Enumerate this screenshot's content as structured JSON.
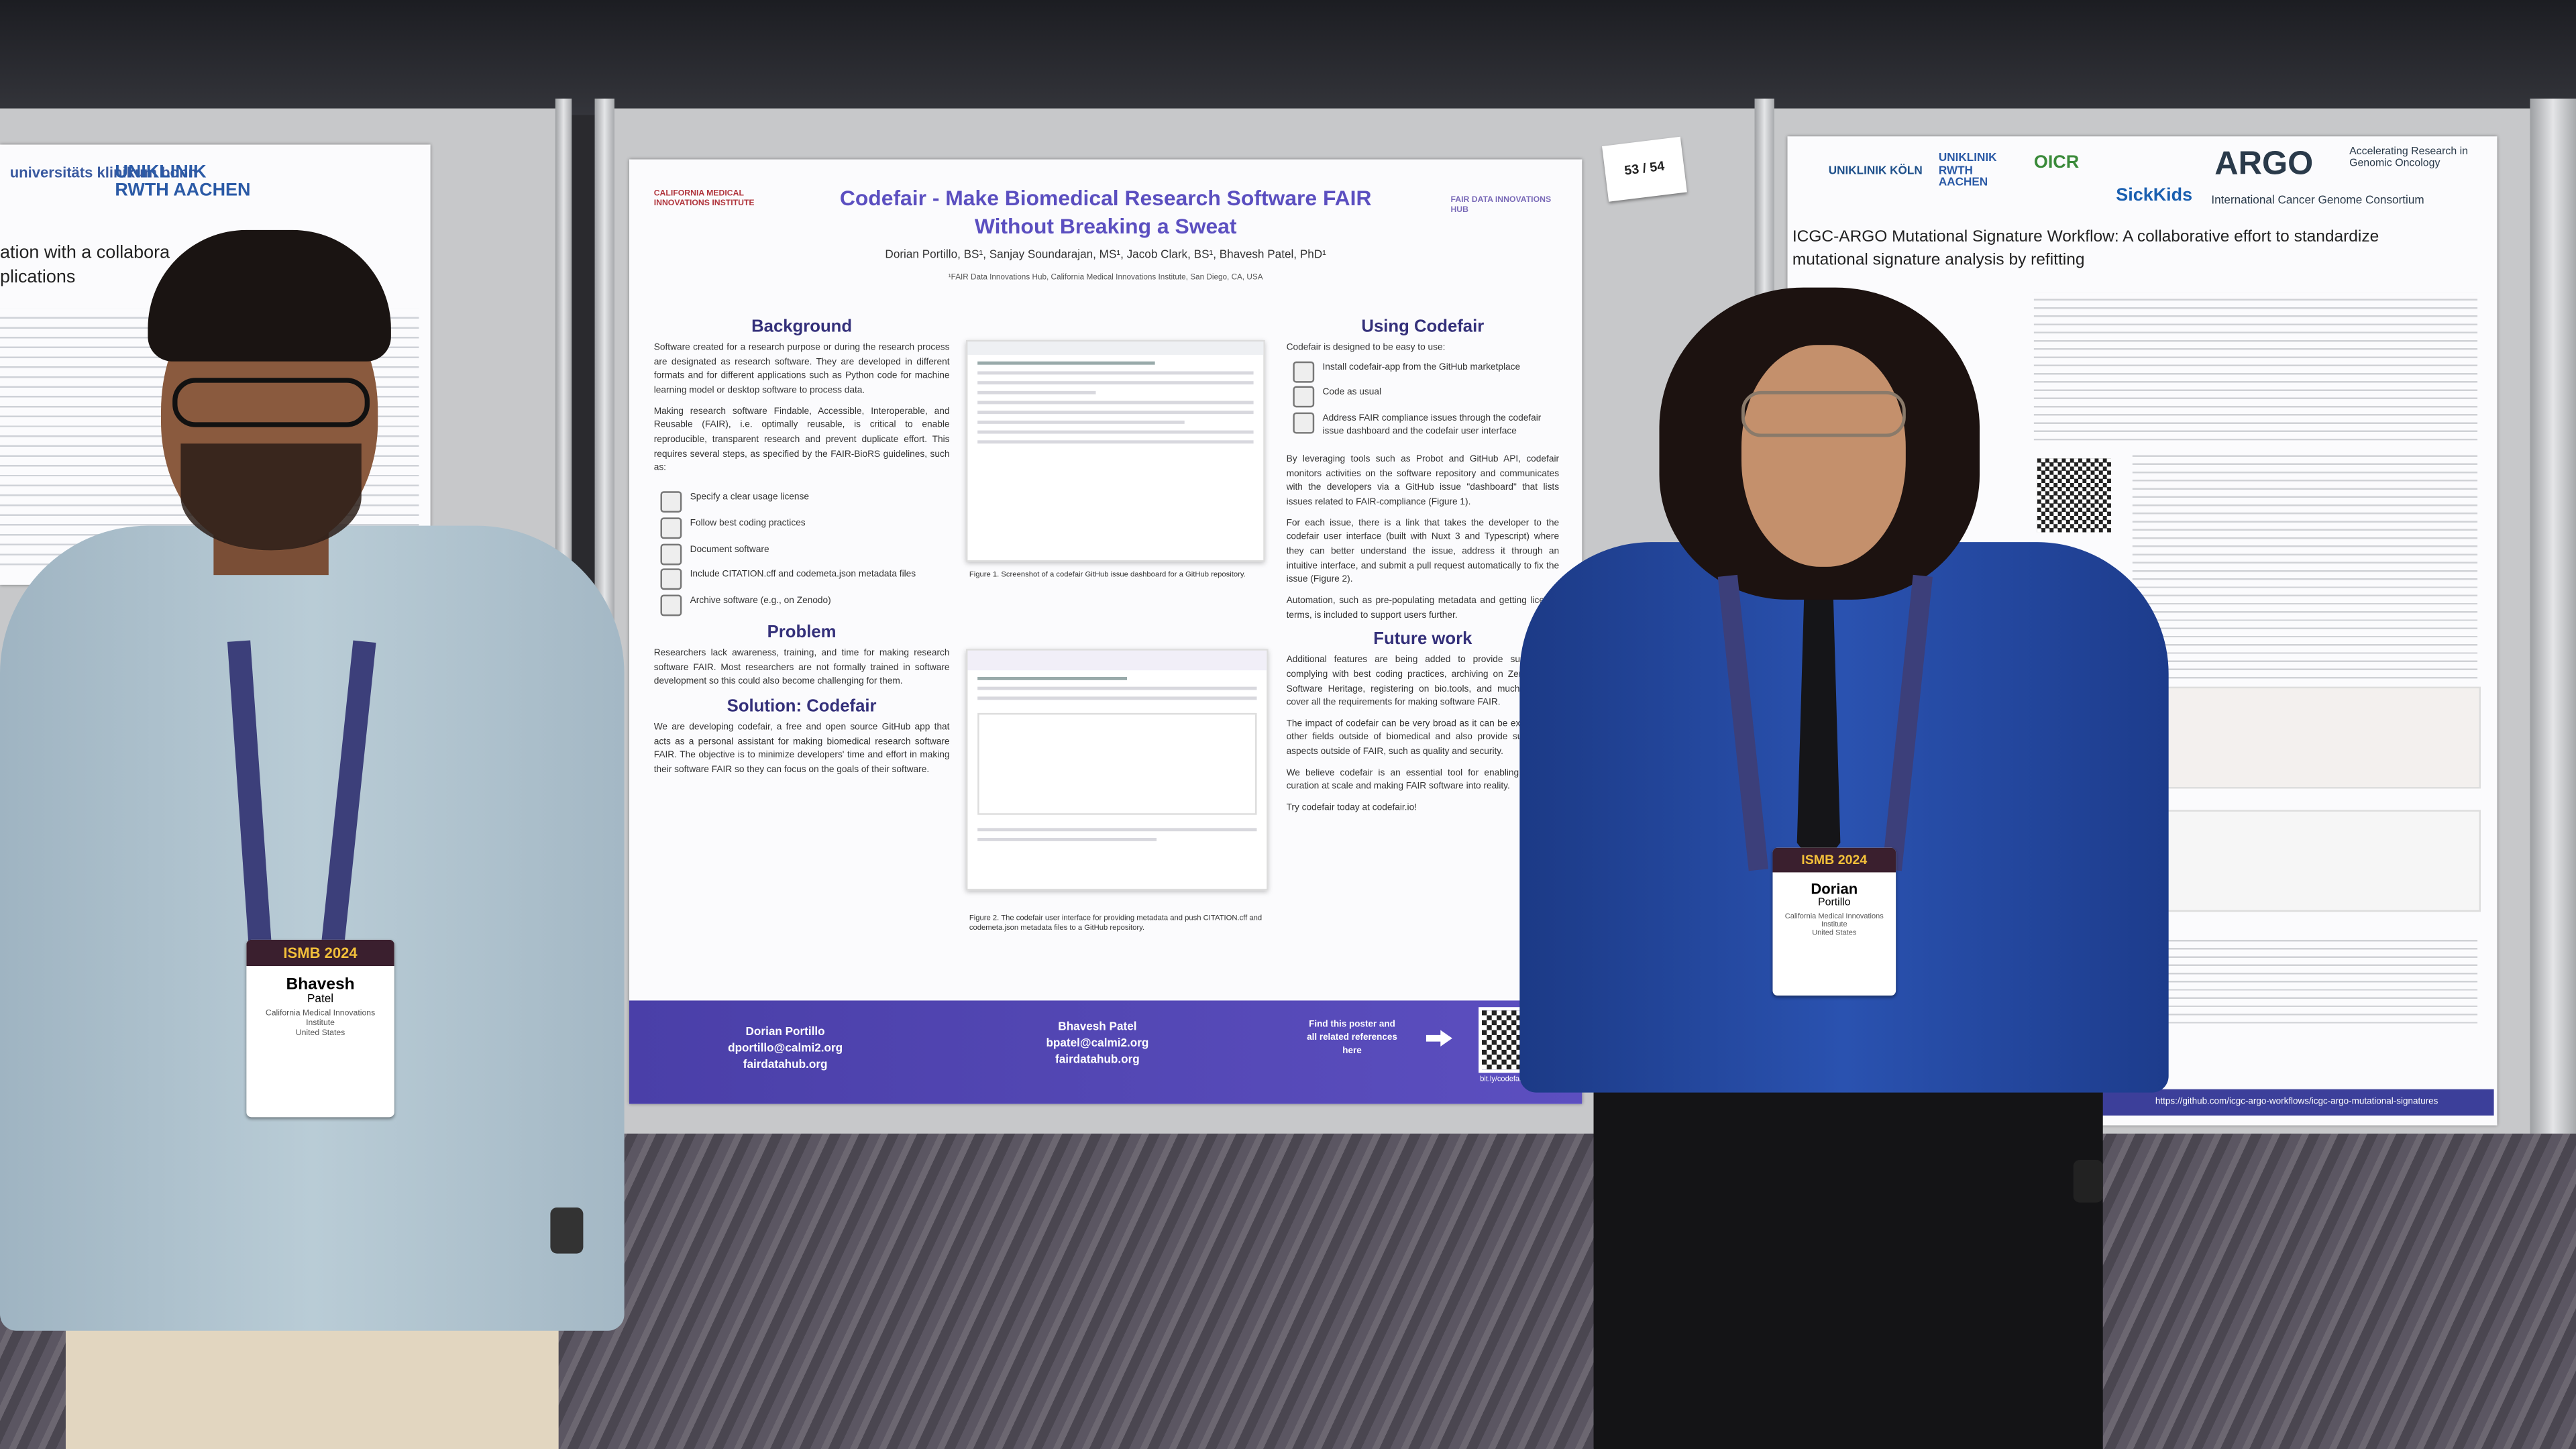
{
  "poster_number": "53 / 54",
  "left_poster": {
    "logo_bonn": "universitäts klinikum bonn",
    "logo_aachen": "UNIKLINIK RWTH AACHEN",
    "title_line_1": "ation with a collabora",
    "title_line_2": "plications"
  },
  "poster": {
    "logo_left": "CALIFORNIA MEDICAL INNOVATIONS INSTITUTE",
    "logo_right": "FAIR DATA INNOVATIONS HUB",
    "title": "Codefair - Make Biomedical Research Software FAIR Without Breaking a Sweat",
    "authors": "Dorian Portillo, BS¹, Sanjay Soundarajan, MS¹, Jacob Clark, BS¹, Bhavesh Patel, PhD¹",
    "affiliation": "¹FAIR Data Innovations Hub, California Medical Innovations Institute, San Diego, CA, USA",
    "background": {
      "heading": "Background",
      "paragraphs": [
        "Software created for a research purpose or during the research process are designated as research software. They are developed in different formats and for different applications such as Python code for machine learning model or desktop software to process data.",
        "Making research software Findable, Accessible, Interoperable, and Reusable (FAIR), i.e. optimally reusable, is critical to enable reproducible, transparent research and prevent duplicate effort. This requires several steps, as specified by the FAIR-BioRS guidelines, such as:"
      ],
      "steps": [
        "Specify a clear usage license",
        "Follow best coding practices",
        "Document software",
        "Include CITATION.cff and codemeta.json metadata files",
        "Archive software (e.g., on Zenodo)"
      ]
    },
    "problem": {
      "heading": "Problem",
      "text": "Researchers lack awareness, training, and time for making research software FAIR. Most researchers are not formally trained in software development so this could also become challenging for them."
    },
    "solution": {
      "heading": "Solution: Codefair",
      "text": "We are developing codefair, a free and open source GitHub app that acts as a personal assistant for making biomedical research software FAIR. The objective is to minimize developers' time and effort in making their software FAIR so they can focus on the goals of their software."
    },
    "figures": [
      "Figure 1. Screenshot of a codefair GitHub issue dashboard for a GitHub repository.",
      "Figure 2. The codefair user interface for providing metadata and push CITATION.cff and codemeta.json metadata files to a GitHub repository."
    ],
    "using": {
      "heading": "Using Codefair",
      "intro": "Codefair is designed to be easy to use:",
      "steps": [
        "Install codefair-app from the GitHub marketplace",
        "Code as usual",
        "Address FAIR compliance issues through the codefair issue dashboard and the codefair user interface"
      ],
      "paragraphs": [
        "By leveraging tools such as Probot and GitHub API, codefair monitors activities on the software repository and communicates with the developers via a GitHub issue \"dashboard\" that lists issues related to FAIR-compliance (Figure 1).",
        "For each issue, there is a link that takes the developer to the codefair user interface (built with Nuxt 3 and Typescript) where they can better understand the issue, address it through an intuitive interface, and submit a pull request automatically to fix the issue (Figure 2).",
        "Automation, such as pre-populating metadata and getting license terms, is included to support users further."
      ]
    },
    "future": {
      "heading": "Future work",
      "paragraphs": [
        "Additional features are being added to provide support for complying with best coding practices, archiving on Zenodo and Software Heritage, registering on bio.tools, and much more to cover all the requirements for making software FAIR.",
        "The impact of codefair can be very broad as it can be extended to other fields outside of biomedical and also provide support for aspects outside of FAIR, such as quality and security.",
        "We believe codefair is an essential tool for enabling software curation at scale and making FAIR software into reality.",
        "Try codefair today at codefair.io!"
      ]
    },
    "footer": {
      "contacts": [
        {
          "name": "Dorian Portillo",
          "email": "dportillo@calmi2.org",
          "site": "fairdatahub.org"
        },
        {
          "name": "Bhavesh Patel",
          "email": "bpatel@calmi2.org",
          "site": "fairdatahub.org"
        }
      ],
      "find_text": "Find this poster and all related references here",
      "short_link": "bit.ly/codefairBOSC"
    }
  },
  "right_poster": {
    "logos": [
      "UNIKLINIK KÖLN",
      "UNIKLINIK RWTH AACHEN",
      "OICR",
      "SickKids",
      "ARGO",
      "Accelerating Research in Genomic Oncology",
      "International Cancer Genome Consortium"
    ],
    "title": "ICGC-ARGO Mutational Signature Workflow: A collaborative effort to standardize mutational signature analysis by refitting",
    "footer_url": "https://github.com/icgc-argo-workflows/icgc-argo-mutational-signatures"
  },
  "badges": [
    {
      "event": "ISMB 2024",
      "first_name": "Bhavesh",
      "last_name": "Patel",
      "affiliation": "California Medical Innovations Institute",
      "country": "United States"
    },
    {
      "event": "ISMB 2024",
      "first_name": "Dorian",
      "last_name": "Portillo",
      "affiliation": "California Medical Innovations Institute",
      "country": "United States"
    }
  ]
}
